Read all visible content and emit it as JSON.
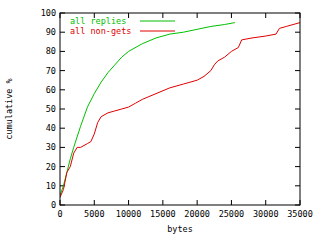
{
  "chart_data": {
    "type": "line",
    "xlabel": "bytes",
    "ylabel": "cumulative %",
    "xlim": [
      0,
      35000
    ],
    "xticks": [
      0,
      5000,
      10000,
      15000,
      20000,
      25000,
      30000,
      35000
    ],
    "ylim": [
      0,
      100
    ],
    "yticks": [
      0,
      10,
      20,
      30,
      40,
      50,
      60,
      70,
      80,
      90,
      100
    ],
    "grid": false,
    "legend": "top-left",
    "series": [
      {
        "name": "all replies",
        "color": "#00c000",
        "x": [
          0,
          500,
          1000,
          1500,
          2000,
          3000,
          4000,
          5000,
          6000,
          7000,
          8000,
          9000,
          10000,
          12000,
          14000,
          16000,
          18000,
          20000,
          22000,
          24000,
          25500
        ],
        "values": [
          5,
          10,
          17,
          24,
          30,
          41,
          51,
          58,
          64,
          69,
          73,
          77,
          80,
          84,
          87,
          89,
          90,
          91.5,
          93,
          94,
          95
        ]
      },
      {
        "name": "all non-gets",
        "color": "#e00000",
        "x": [
          0,
          500,
          1000,
          1500,
          2000,
          2500,
          3000,
          4000,
          4500,
          5000,
          5500,
          6000,
          7000,
          8000,
          9000,
          10000,
          11000,
          12000,
          14000,
          16000,
          18000,
          20000,
          21000,
          22000,
          22500,
          23000,
          24000,
          25000,
          26000,
          26500,
          28000,
          30000,
          31500,
          32000,
          33000,
          35000
        ],
        "values": [
          4,
          8,
          17,
          20,
          27,
          30,
          30,
          32,
          33,
          37,
          43,
          46,
          48,
          49,
          50,
          51,
          53,
          55,
          58,
          61,
          63,
          65,
          67,
          70,
          73,
          75,
          77,
          80,
          82,
          86,
          87,
          88,
          89,
          92,
          93,
          95
        ]
      }
    ]
  }
}
